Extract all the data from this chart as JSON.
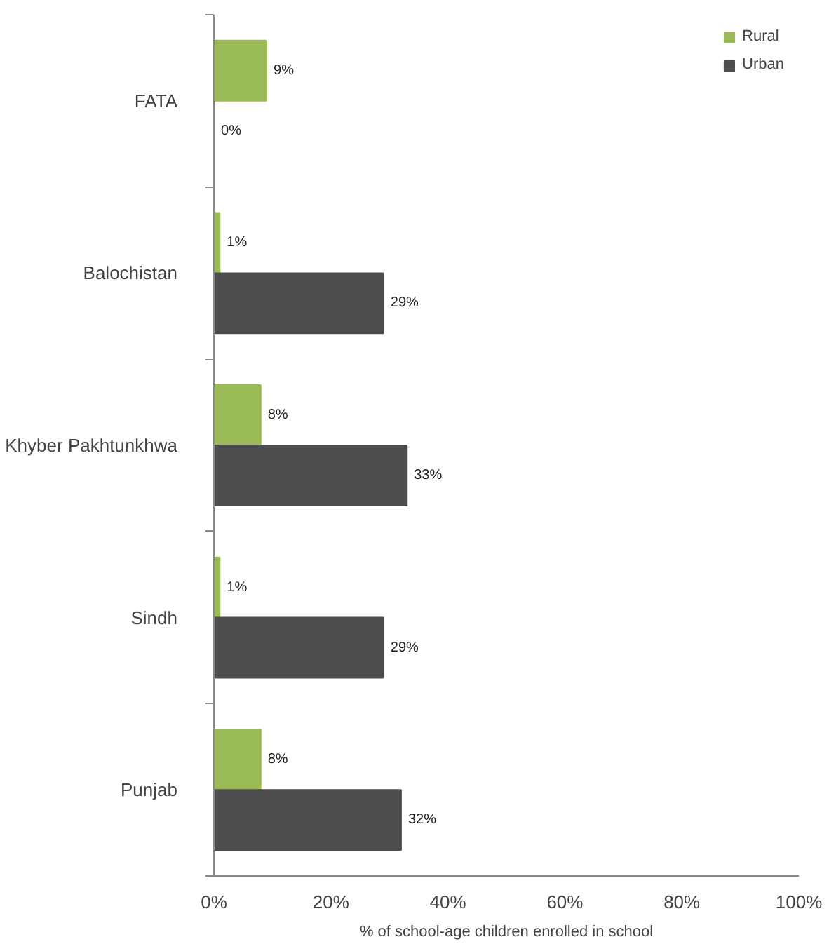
{
  "chart_data": {
    "type": "bar",
    "orientation": "horizontal",
    "categories": [
      "FATA",
      "Balochistan",
      "Khyber Pakhtunkhwa",
      "Sindh",
      "Punjab"
    ],
    "series": [
      {
        "name": "Rural",
        "color": "#9bbb59",
        "values": [
          9,
          1,
          8,
          1,
          8
        ],
        "value_labels": [
          "9%",
          "1%",
          "8%",
          "1%",
          "8%"
        ]
      },
      {
        "name": "Urban",
        "color": "#4d4d4d",
        "values": [
          0,
          29,
          33,
          29,
          32
        ],
        "value_labels": [
          "0%",
          "29%",
          "33%",
          "29%",
          "32%"
        ]
      }
    ],
    "xlabel": "% of school-age children enrolled in school",
    "xlim": [
      0,
      100
    ],
    "xticks": [
      {
        "value": 0,
        "label": "0%"
      },
      {
        "value": 20,
        "label": "20%"
      },
      {
        "value": 40,
        "label": "40%"
      },
      {
        "value": 60,
        "label": "60%"
      },
      {
        "value": 80,
        "label": "80%"
      },
      {
        "value": 100,
        "label": "100%"
      }
    ],
    "grid": false,
    "legend": "top right"
  }
}
